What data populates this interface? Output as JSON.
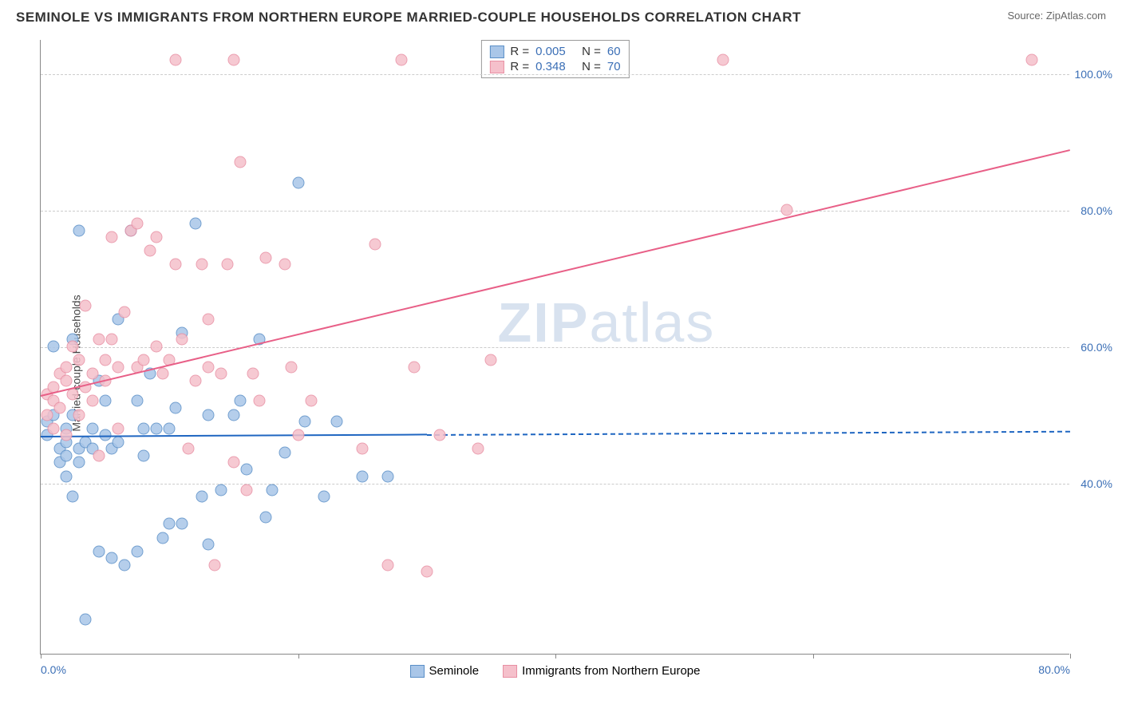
{
  "title": "SEMINOLE VS IMMIGRANTS FROM NORTHERN EUROPE MARRIED-COUPLE HOUSEHOLDS CORRELATION CHART",
  "source": "Source: ZipAtlas.com",
  "watermark_a": "ZIP",
  "watermark_b": "atlas",
  "chart": {
    "type": "scatter",
    "ylabel": "Married-couple Households",
    "xlim": [
      0,
      80
    ],
    "ylim": [
      15,
      105
    ],
    "yticks": [
      40,
      60,
      80,
      100
    ],
    "ytick_labels": [
      "40.0%",
      "60.0%",
      "80.0%",
      "100.0%"
    ],
    "xticks": [
      0,
      20,
      40,
      60,
      80
    ],
    "xtick_labels": [
      "0.0%",
      "",
      "",
      "",
      "80.0%"
    ],
    "grid_color": "#cccccc",
    "background_color": "#ffffff",
    "axis_color": "#888888",
    "tick_color": "#3b6fb6",
    "marker_radius": 7.5,
    "series": [
      {
        "name": "Seminole",
        "label": "Seminole",
        "fill": "#a9c6e8",
        "stroke": "#5a8fc7",
        "line_color": "#1f66c1",
        "R": "0.005",
        "N": "60",
        "trend": {
          "x1": 0,
          "y1": 47,
          "x2": 30,
          "y2": 47.3,
          "dash_x2": 80,
          "dash_y2": 47.8
        },
        "points": [
          [
            0.5,
            49
          ],
          [
            0.5,
            47
          ],
          [
            1,
            50
          ],
          [
            1,
            60
          ],
          [
            1.5,
            45
          ],
          [
            1.5,
            43
          ],
          [
            2,
            44
          ],
          [
            2,
            41
          ],
          [
            2,
            48
          ],
          [
            2,
            46
          ],
          [
            2.5,
            50
          ],
          [
            2.5,
            38
          ],
          [
            2.5,
            61
          ],
          [
            3,
            77
          ],
          [
            3,
            45
          ],
          [
            3,
            43
          ],
          [
            3.5,
            46
          ],
          [
            3.5,
            20
          ],
          [
            4,
            48
          ],
          [
            4,
            45
          ],
          [
            4.5,
            30
          ],
          [
            4.5,
            55
          ],
          [
            5,
            52
          ],
          [
            5,
            47
          ],
          [
            5.5,
            29
          ],
          [
            5.5,
            45
          ],
          [
            6,
            64
          ],
          [
            6,
            46
          ],
          [
            6.5,
            28
          ],
          [
            7,
            77
          ],
          [
            7.5,
            52
          ],
          [
            7.5,
            30
          ],
          [
            8,
            48
          ],
          [
            8,
            44
          ],
          [
            8.5,
            56
          ],
          [
            9,
            48
          ],
          [
            9.5,
            32
          ],
          [
            10,
            48
          ],
          [
            10,
            34
          ],
          [
            10.5,
            51
          ],
          [
            11,
            34
          ],
          [
            11,
            62
          ],
          [
            12,
            78
          ],
          [
            12.5,
            38
          ],
          [
            13,
            31
          ],
          [
            13,
            50
          ],
          [
            14,
            39
          ],
          [
            15,
            50
          ],
          [
            15.5,
            52
          ],
          [
            16,
            42
          ],
          [
            17,
            61
          ],
          [
            17.5,
            35
          ],
          [
            18,
            39
          ],
          [
            19,
            44.5
          ],
          [
            20,
            84
          ],
          [
            20.5,
            49
          ],
          [
            22,
            38
          ],
          [
            23,
            49
          ],
          [
            25,
            41
          ],
          [
            27,
            41
          ]
        ]
      },
      {
        "name": "Immigrants",
        "label": "Immigrants from Northern Europe",
        "fill": "#f5c0cb",
        "stroke": "#e88fa3",
        "line_color": "#e85f87",
        "R": "0.348",
        "N": "70",
        "trend": {
          "x1": 0,
          "y1": 53,
          "x2": 80,
          "y2": 89
        },
        "points": [
          [
            0.5,
            50
          ],
          [
            0.5,
            53
          ],
          [
            1,
            48
          ],
          [
            1,
            52
          ],
          [
            1,
            54
          ],
          [
            1.5,
            51
          ],
          [
            1.5,
            56
          ],
          [
            2,
            47
          ],
          [
            2,
            57
          ],
          [
            2,
            55
          ],
          [
            2.5,
            53
          ],
          [
            2.5,
            60
          ],
          [
            3,
            50
          ],
          [
            3,
            58
          ],
          [
            3.5,
            66
          ],
          [
            3.5,
            54
          ],
          [
            4,
            56
          ],
          [
            4,
            52
          ],
          [
            4.5,
            44
          ],
          [
            4.5,
            61
          ],
          [
            5,
            58
          ],
          [
            5,
            55
          ],
          [
            5.5,
            76
          ],
          [
            5.5,
            61
          ],
          [
            6,
            48
          ],
          [
            6,
            57
          ],
          [
            6.5,
            65
          ],
          [
            7,
            77
          ],
          [
            7.5,
            78
          ],
          [
            7.5,
            57
          ],
          [
            8,
            58
          ],
          [
            8.5,
            74
          ],
          [
            9,
            60
          ],
          [
            9,
            76
          ],
          [
            9.5,
            56
          ],
          [
            10,
            58
          ],
          [
            10.5,
            72
          ],
          [
            11,
            61
          ],
          [
            11.5,
            45
          ],
          [
            12,
            55
          ],
          [
            12.5,
            72
          ],
          [
            13,
            57
          ],
          [
            13.5,
            28
          ],
          [
            14,
            56
          ],
          [
            14.5,
            72
          ],
          [
            15,
            43
          ],
          [
            15.5,
            87
          ],
          [
            16,
            39
          ],
          [
            16.5,
            56
          ],
          [
            17,
            52
          ],
          [
            17.5,
            73
          ],
          [
            19,
            72
          ],
          [
            19.5,
            57
          ],
          [
            20,
            47
          ],
          [
            21,
            52
          ],
          [
            25,
            45
          ],
          [
            26,
            75
          ],
          [
            27,
            28
          ],
          [
            28,
            102
          ],
          [
            29,
            57
          ],
          [
            30,
            27
          ],
          [
            31,
            47
          ],
          [
            34,
            45
          ],
          [
            35,
            58
          ],
          [
            53,
            102
          ],
          [
            58,
            80
          ],
          [
            77,
            102
          ],
          [
            10.5,
            102
          ],
          [
            15,
            102
          ],
          [
            13,
            64
          ]
        ]
      }
    ]
  },
  "stats_box": {
    "r_label": "R =",
    "n_label": "N ="
  },
  "legend_labels": [
    "Seminole",
    "Immigrants from Northern Europe"
  ]
}
